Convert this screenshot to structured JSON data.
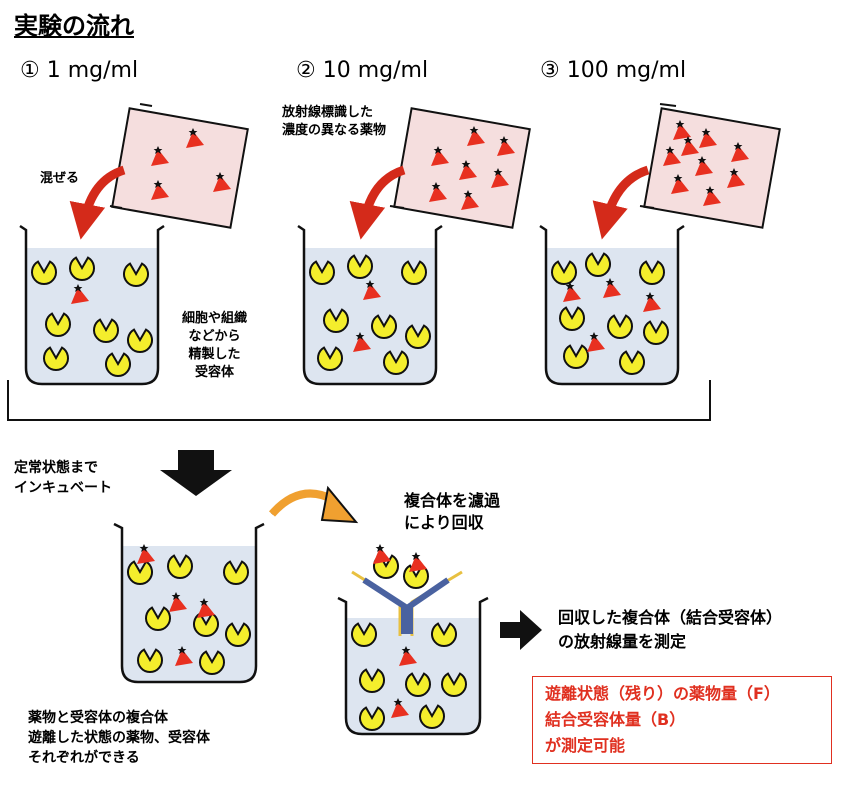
{
  "title": "実験の流れ",
  "conditions": [
    {
      "mark": "①",
      "concentration": "1 mg/ml"
    },
    {
      "mark": "②",
      "concentration": "10 mg/ml"
    },
    {
      "mark": "③",
      "concentration": "100 mg/ml"
    }
  ],
  "labels": {
    "mix": "混ぜる",
    "radiolabeled_line1": "放射線標識した",
    "radiolabeled_line2": "濃度の異なる薬物",
    "receptor_line1": "細胞や組織",
    "receptor_line2": "などから",
    "receptor_line3": "精製した",
    "receptor_line4": "受容体",
    "incubate_line1": "定常状態まで",
    "incubate_line2": "インキュベート",
    "filter_line1": "複合体を濾過",
    "filter_line2": "により回収",
    "complex_line1": "薬物と受容体の複合体",
    "complex_line2": "遊離した状態の薬物、受容体",
    "complex_line3": "それぞれができる",
    "measure_line1": "回収した複合体（結合受容体）",
    "measure_line2": "の放射線量を測定"
  },
  "result": {
    "line1": "遊離状態（残り）の薬物量（F）",
    "line2": "結合受容体量（B）",
    "line3": "が測定可能"
  },
  "colors": {
    "receptor": "#f4ee2c",
    "drug": "#e83020",
    "arrow_red": "#d42a1a",
    "arrow_orange": "#f0a030",
    "liquid": "#dde5f0",
    "drug_container": "#f5dede",
    "filter_blue": "#4a62a0",
    "filter_gold": "#e8c040"
  }
}
